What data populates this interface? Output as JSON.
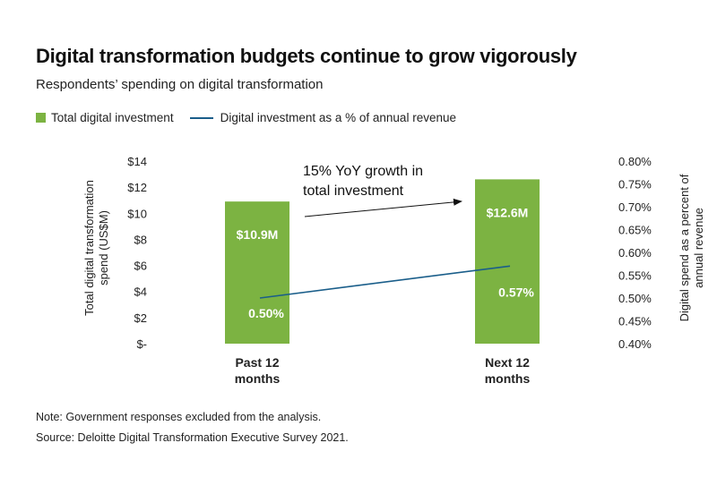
{
  "title": "Digital transformation budgets continue to grow vigorously",
  "subtitle": "Respondents’ spending on digital transformation",
  "legend": {
    "bar_label": "Total digital investment",
    "line_label": "Digital investment as a % of annual revenue"
  },
  "colors": {
    "bar": "#7cb342",
    "line": "#1a5e8a",
    "bar_label_text": "#ffffff",
    "text": "#222222"
  },
  "annotation": {
    "line1": "15% YoY growth in",
    "line2": "total investment"
  },
  "note": "Note: Government responses excluded from the analysis.",
  "source": "Source: Deloitte Digital Transformation Executive Survey 2021.",
  "chart_data": {
    "type": "bar",
    "categories": [
      [
        "Past 12",
        "months"
      ],
      [
        "Next 12",
        "months"
      ]
    ],
    "series": [
      {
        "name": "Total digital investment",
        "type": "bar",
        "axis": "left",
        "values": [
          10.9,
          12.6
        ],
        "labels": [
          "$10.9M",
          "$12.6M"
        ]
      },
      {
        "name": "Digital investment as a % of annual revenue",
        "type": "line",
        "axis": "right",
        "values": [
          0.5,
          0.57
        ],
        "labels": [
          "0.50%",
          "0.57%"
        ]
      }
    ],
    "left_axis": {
      "label": [
        "Total digital transformation",
        "spend (US$M)"
      ],
      "ylim": [
        0,
        14
      ],
      "ticks": [
        0,
        2,
        4,
        6,
        8,
        10,
        12,
        14
      ],
      "tick_labels": [
        "$-",
        "$2",
        "$4",
        "$6",
        "$8",
        "$10",
        "$12",
        "$14"
      ]
    },
    "right_axis": {
      "label": [
        "Digital spend as a percent of",
        "annual revenue"
      ],
      "ylim": [
        0.4,
        0.8
      ],
      "ticks": [
        0.4,
        0.45,
        0.5,
        0.55,
        0.6,
        0.65,
        0.7,
        0.75,
        0.8
      ],
      "tick_labels": [
        "0.40%",
        "0.45%",
        "0.50%",
        "0.55%",
        "0.60%",
        "0.65%",
        "0.70%",
        "0.75%",
        "0.80%"
      ]
    },
    "grid": false,
    "legend_position": "top-left"
  }
}
